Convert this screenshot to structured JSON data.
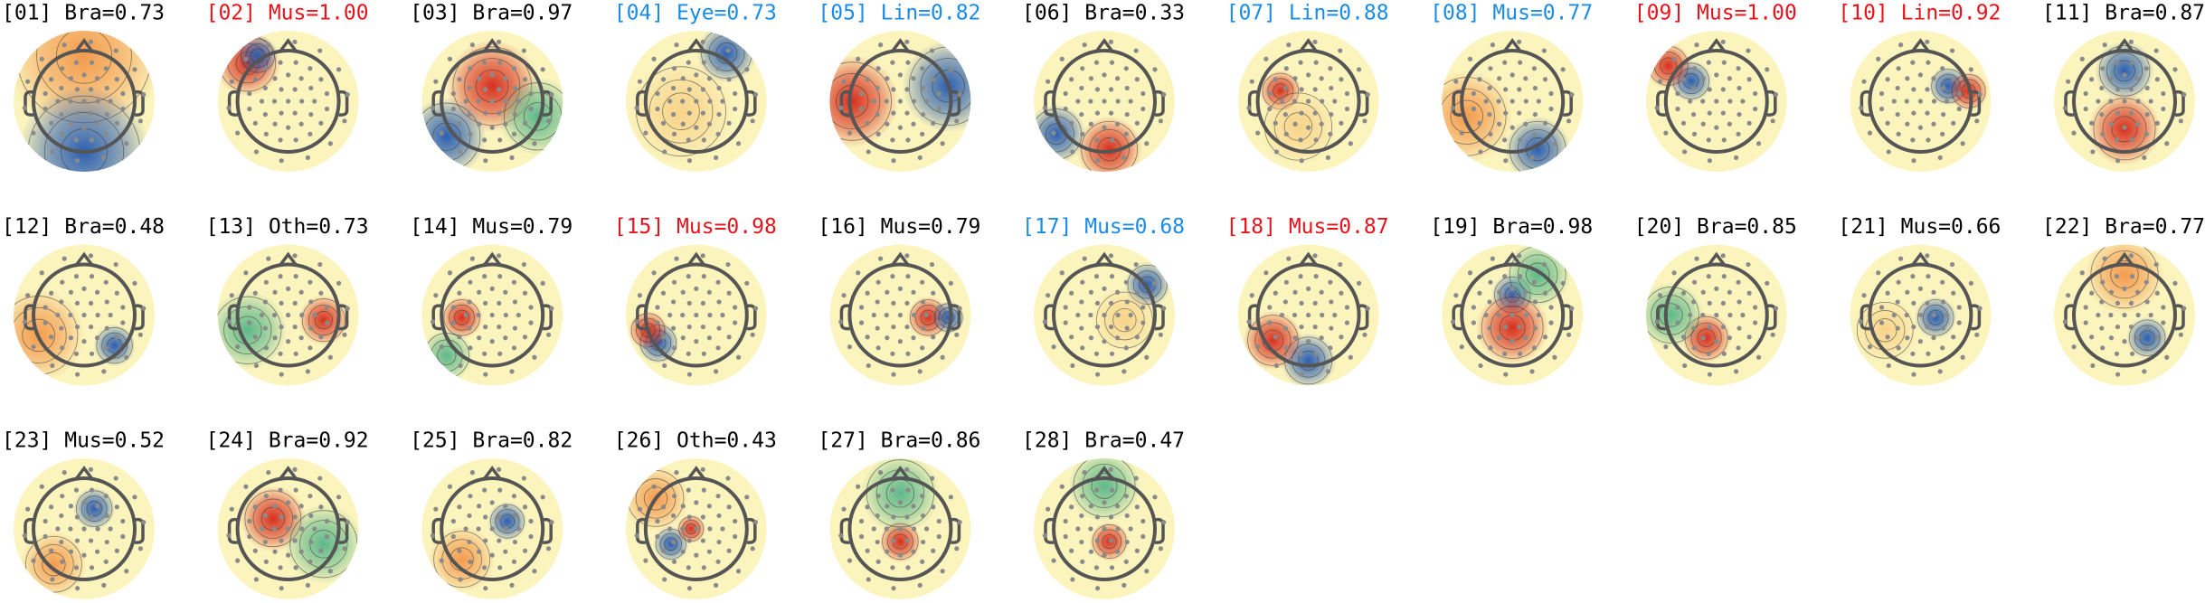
{
  "components": [
    {
      "label": "[01] Bra=0.73",
      "color": "#000000"
    },
    {
      "label": "[02] Mus=1.00",
      "color": "#e8141c"
    },
    {
      "label": "[03] Bra=0.97",
      "color": "#000000"
    },
    {
      "label": "[04] Eye=0.73",
      "color": "#1a8ce6"
    },
    {
      "label": "[05] Lin=0.82",
      "color": "#1a8ce6"
    },
    {
      "label": "[06] Bra=0.33",
      "color": "#000000"
    },
    {
      "label": "[07] Lin=0.88",
      "color": "#1a8ce6"
    },
    {
      "label": "[08] Mus=0.77",
      "color": "#1a8ce6"
    },
    {
      "label": "[09] Mus=1.00",
      "color": "#e8141c"
    },
    {
      "label": "[10] Lin=0.92",
      "color": "#e8141c"
    },
    {
      "label": "[11] Bra=0.87",
      "color": "#000000"
    },
    {
      "label": "[12] Bra=0.48",
      "color": "#000000"
    },
    {
      "label": "[13] Oth=0.73",
      "color": "#000000"
    },
    {
      "label": "[14] Mus=0.79",
      "color": "#000000"
    },
    {
      "label": "[15] Mus=0.98",
      "color": "#e8141c"
    },
    {
      "label": "[16] Mus=0.79",
      "color": "#000000"
    },
    {
      "label": "[17] Mus=0.68",
      "color": "#1a8ce6"
    },
    {
      "label": "[18] Mus=0.87",
      "color": "#e8141c"
    },
    {
      "label": "[19] Bra=0.98",
      "color": "#000000"
    },
    {
      "label": "[20] Bra=0.85",
      "color": "#000000"
    },
    {
      "label": "[21] Mus=0.66",
      "color": "#000000"
    },
    {
      "label": "[22] Bra=0.77",
      "color": "#000000"
    },
    {
      "label": "[23] Mus=0.52",
      "color": "#000000"
    },
    {
      "label": "[24] Bra=0.92",
      "color": "#000000"
    },
    {
      "label": "[25] Bra=0.82",
      "color": "#000000"
    },
    {
      "label": "[26] Oth=0.43",
      "color": "#000000"
    },
    {
      "label": "[27] Bra=0.86",
      "color": "#000000"
    },
    {
      "label": "[28] Bra=0.47",
      "color": "#000000"
    }
  ]
}
